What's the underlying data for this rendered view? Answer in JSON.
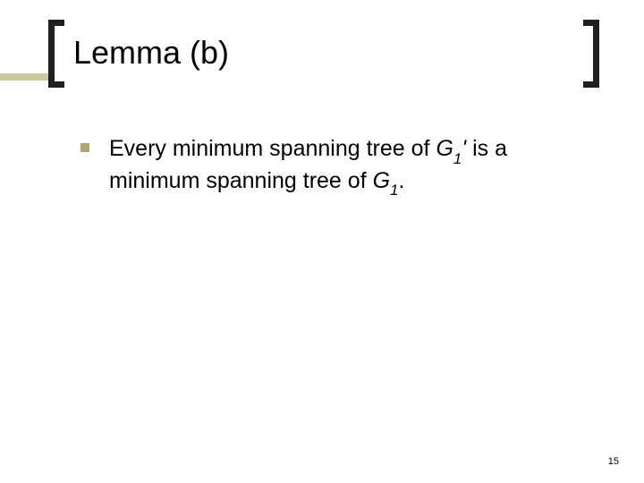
{
  "slide": {
    "title": "Lemma (b)",
    "page_number": "15"
  },
  "bullet": {
    "prefix": "Every minimum spanning tree of ",
    "g1": "G",
    "sub1": "1",
    "prime": "'",
    "middle": " is a minimum spanning tree of ",
    "g2": "G",
    "sub2": "1",
    "suffix": "."
  },
  "style": {
    "accent_color": "#d0c79f",
    "bullet_color": "#b0a66f",
    "bracket_color": "#1f1f1f",
    "background": "#ffffff",
    "title_fontsize": 36,
    "body_fontsize": 25,
    "pagenum_fontsize": 11
  }
}
